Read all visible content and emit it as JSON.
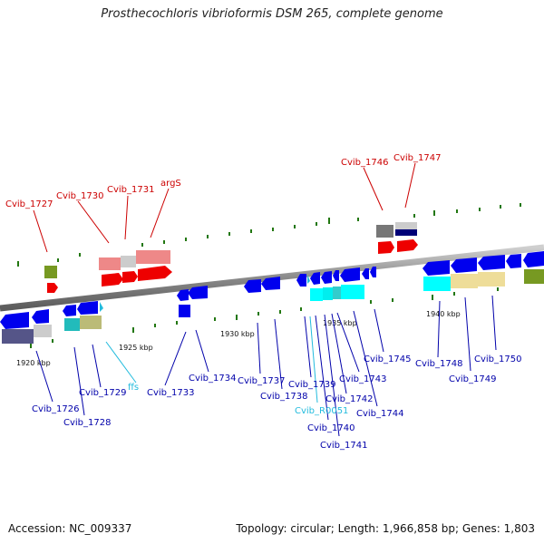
{
  "title": "Prosthecochloris vibrioformis DSM 265, complete genome",
  "footer": {
    "accession": "Accession: NC_009337",
    "summary": "Topology: circular; Length: 1,966,858 bp; Genes: 1,803"
  },
  "colors": {
    "backbone": "#8a8a8a",
    "label_red": "#cc0000",
    "label_blue": "#0000aa",
    "label_cyan": "#22bbdd",
    "tick_green": "#227711"
  },
  "scale_ticks": [
    "1920 kbp",
    "1925 kbp",
    "1930 kbp",
    "1935 kbp",
    "1940 kbp"
  ],
  "labels": {
    "red": [
      "Cvib_1727",
      "Cvib_1730",
      "Cvib_1731",
      "argS",
      "Cvib_1746",
      "Cvib_1747"
    ],
    "blue": [
      "Cvib_1726",
      "Cvib_1728",
      "Cvib_1729",
      "Cvib_1733",
      "Cvib_1734",
      "Cvib_1737",
      "Cvib_1738",
      "Cvib_1739",
      "Cvib_1740",
      "Cvib_1741",
      "Cvib_1742",
      "Cvib_1743",
      "Cvib_1744",
      "Cvib_1745",
      "Cvib_1748",
      "Cvib_1749",
      "Cvib_1750"
    ],
    "cyan": [
      "ffs",
      "Cvib_R0051"
    ]
  }
}
